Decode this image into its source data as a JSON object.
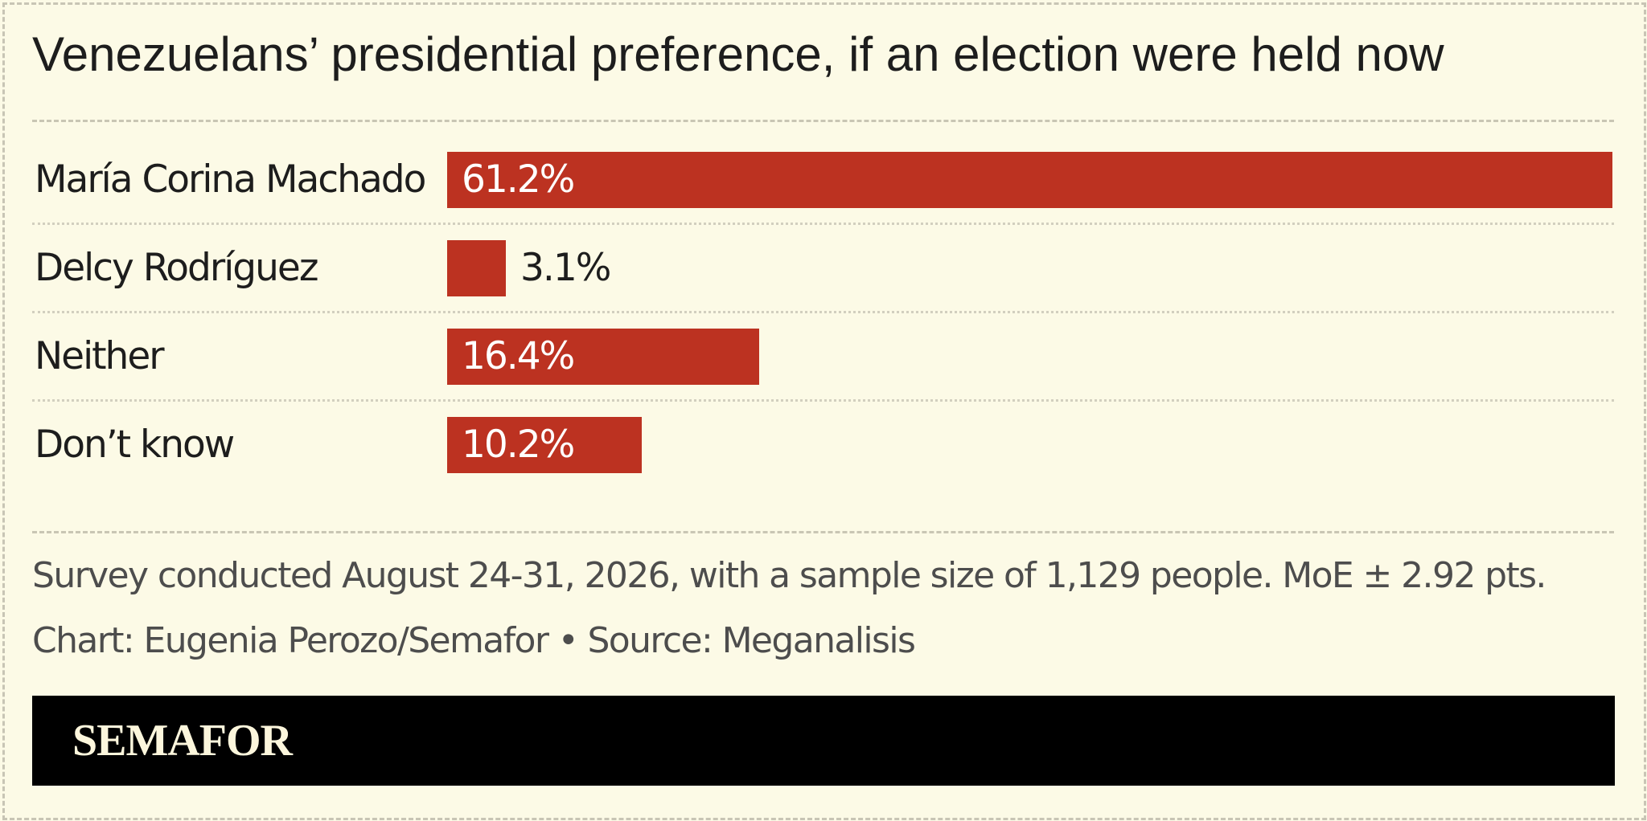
{
  "chart_data": {
    "type": "bar",
    "orientation": "horizontal",
    "title": "Venezuelans’ presidential preference, if an election were held now",
    "categories": [
      "María Corina Machado",
      "Delcy Rodríguez",
      "Neither",
      "Don’t know"
    ],
    "values": [
      61.2,
      3.1,
      16.4,
      10.2
    ],
    "value_labels": [
      "61.2%",
      "3.1%",
      "16.4%",
      "10.2%"
    ],
    "unit": "%",
    "xlim": [
      0,
      61.2
    ],
    "bar_color": "#bc3221",
    "grid": false
  },
  "note": "Survey conducted August 24-31, 2026, with a sample size of 1,129 people. MoE ± 2.92 pts.",
  "credit": "Chart: Eugenia Perozo/Semafor • Source: Meganalisis",
  "brand": "SEMAFOR",
  "colors": {
    "background": "#fcfae6",
    "bar": "#bc3221",
    "footer": "#000000",
    "brand_text": "#fcf6dc"
  }
}
